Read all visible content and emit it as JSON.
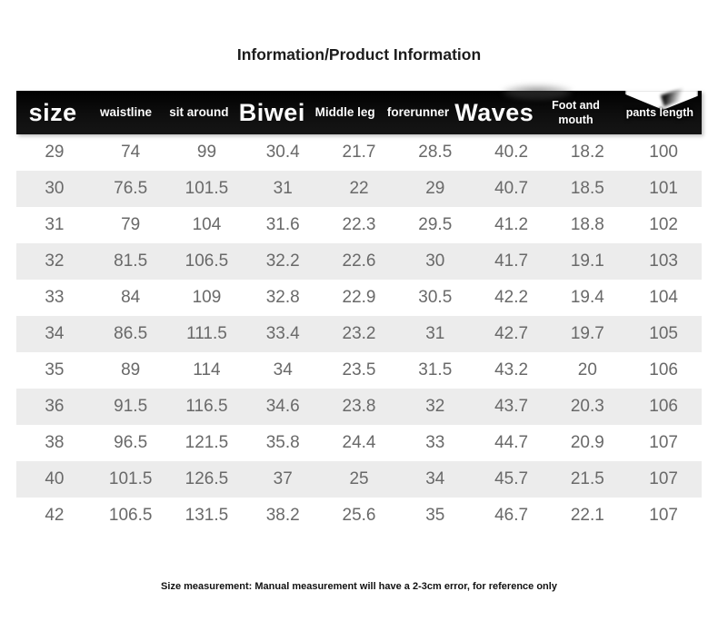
{
  "page": {
    "title": "Information/Product Information",
    "footnote": "Size measurement: Manual measurement will have a 2-3cm error, for reference only"
  },
  "chart_data": {
    "type": "table",
    "title": "Information/Product Information",
    "columns": [
      "size",
      "waistline",
      "sit around",
      "Biwei",
      "Middle leg",
      "forerunner",
      "Waves",
      "Foot and mouth",
      "pants length"
    ],
    "rows": [
      [
        "29",
        "74",
        "99",
        "30.4",
        "21.7",
        "28.5",
        "40.2",
        "18.2",
        "100"
      ],
      [
        "30",
        "76.5",
        "101.5",
        "31",
        "22",
        "29",
        "40.7",
        "18.5",
        "101"
      ],
      [
        "31",
        "79",
        "104",
        "31.6",
        "22.3",
        "29.5",
        "41.2",
        "18.8",
        "102"
      ],
      [
        "32",
        "81.5",
        "106.5",
        "32.2",
        "22.6",
        "30",
        "41.7",
        "19.1",
        "103"
      ],
      [
        "33",
        "84",
        "109",
        "32.8",
        "22.9",
        "30.5",
        "42.2",
        "19.4",
        "104"
      ],
      [
        "34",
        "86.5",
        "111.5",
        "33.4",
        "23.2",
        "31",
        "42.7",
        "19.7",
        "105"
      ],
      [
        "35",
        "89",
        "114",
        "34",
        "23.5",
        "31.5",
        "43.2",
        "20",
        "106"
      ],
      [
        "36",
        "91.5",
        "116.5",
        "34.6",
        "23.8",
        "32",
        "43.7",
        "20.3",
        "106"
      ],
      [
        "38",
        "96.5",
        "121.5",
        "35.8",
        "24.4",
        "33",
        "44.7",
        "20.9",
        "107"
      ],
      [
        "40",
        "101.5",
        "126.5",
        "37",
        "25",
        "34",
        "45.7",
        "21.5",
        "107"
      ],
      [
        "42",
        "106.5",
        "131.5",
        "38.2",
        "25.6",
        "35",
        "46.7",
        "22.1",
        "107"
      ]
    ],
    "note": "Size measurement: Manual measurement will have a 2-3cm error, for reference only",
    "layout": {
      "striped": true,
      "stripe_rows": "even (2nd, 4th, ...)",
      "stripe_color": "#ececec",
      "header_bg": "#0a0a0a",
      "header_text_color": "#ffffff",
      "body_text_color": "#696969",
      "column_emphasis": [
        "large",
        "small",
        "small",
        "large",
        "small",
        "small",
        "large",
        "wrap",
        "wrap"
      ]
    }
  }
}
